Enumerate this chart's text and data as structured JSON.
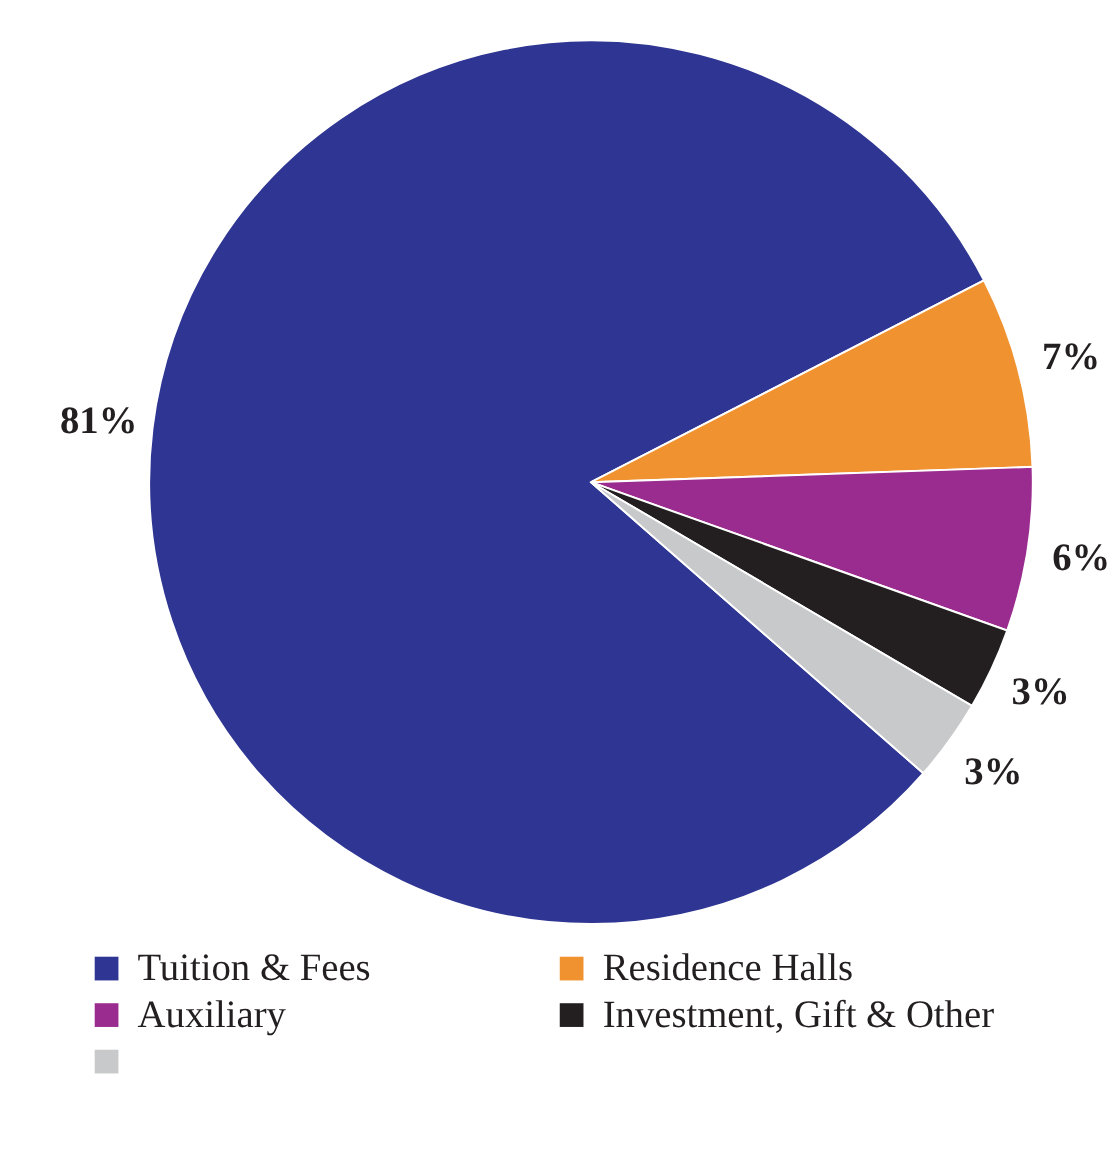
{
  "chart_data": {
    "type": "pie",
    "categories": [
      "Tuition & Fees",
      "Residence Halls",
      "Auxiliary",
      "Investment, Gift & Other",
      null
    ],
    "values": [
      81,
      7,
      6,
      3,
      3
    ],
    "value_labels": [
      "81%",
      "7%",
      "6%",
      "3%",
      "3%"
    ],
    "colors": [
      "#2e3592",
      "#f0922f",
      "#9b2c8f",
      "#231f20",
      "#c8c9cb"
    ],
    "legend": "bottom"
  }
}
